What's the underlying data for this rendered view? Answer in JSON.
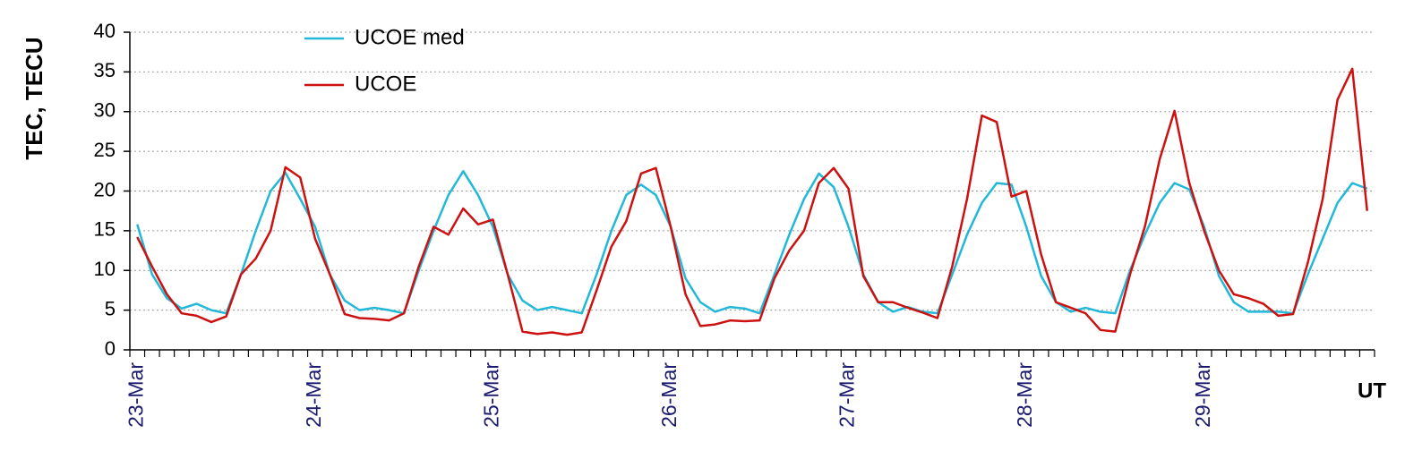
{
  "chart_data": {
    "type": "line",
    "ylabel": "TEC, TECU",
    "xlabel": "UT",
    "categories": [
      "23-Mar",
      null,
      null,
      null,
      null,
      null,
      null,
      null,
      null,
      null,
      null,
      null,
      "24-Mar",
      null,
      null,
      null,
      null,
      null,
      null,
      null,
      null,
      null,
      null,
      null,
      "25-Mar",
      null,
      null,
      null,
      null,
      null,
      null,
      null,
      null,
      null,
      null,
      null,
      "26-Mar",
      null,
      null,
      null,
      null,
      null,
      null,
      null,
      null,
      null,
      null,
      null,
      "27-Mar",
      null,
      null,
      null,
      null,
      null,
      null,
      null,
      null,
      null,
      null,
      null,
      "28-Mar",
      null,
      null,
      null,
      null,
      null,
      null,
      null,
      null,
      null,
      null,
      null,
      "29-Mar",
      null,
      null,
      null,
      null,
      null,
      null,
      null,
      null,
      null,
      null,
      null
    ],
    "series": [
      {
        "name": "UCOE med",
        "color": "#22b8d8",
        "values": [
          15.8,
          9.5,
          6.5,
          5.2,
          5.8,
          5.0,
          4.6,
          9.5,
          15,
          20,
          22.3,
          19,
          15.5,
          9.5,
          6.2,
          5.0,
          5.3,
          5.0,
          4.6,
          10,
          15,
          19.5,
          22.5,
          19.5,
          15.5,
          9.5,
          6.2,
          5.0,
          5.4,
          5.0,
          4.6,
          9.5,
          15,
          19.5,
          20.8,
          19.5,
          15.5,
          9,
          6,
          4.8,
          5.4,
          5.2,
          4.6,
          9.5,
          14.5,
          19,
          22.2,
          20.5,
          15.5,
          9.5,
          6,
          4.8,
          5.4,
          4.8,
          4.6,
          9.5,
          14.5,
          18.5,
          21,
          20.8,
          15.5,
          9.3,
          6,
          4.8,
          5.3,
          4.8,
          4.6,
          10,
          14.5,
          18.5,
          21,
          20.2,
          15.5,
          9.3,
          6,
          4.8,
          4.8,
          4.8,
          4.6,
          9.5,
          14,
          18.5,
          21,
          20.3
        ]
      },
      {
        "name": "UCOE",
        "color": "#cc1111",
        "values": [
          14.2,
          10.5,
          7,
          4.6,
          4.3,
          3.5,
          4.2,
          9.5,
          11.5,
          15,
          23,
          21.7,
          14,
          9.5,
          4.5,
          4.0,
          3.9,
          3.7,
          4.6,
          10.5,
          15.5,
          14.5,
          17.8,
          15.8,
          16.4,
          9.5,
          2.3,
          2.0,
          2.2,
          1.9,
          2.2,
          7.5,
          13,
          16.2,
          22.2,
          22.9,
          15.5,
          7,
          3,
          3.2,
          3.7,
          3.6,
          3.7,
          9,
          12.5,
          15,
          21,
          22.9,
          20.3,
          9.3,
          6.0,
          6.0,
          5.3,
          4.7,
          4.0,
          10.5,
          19,
          29.5,
          28.7,
          19.3,
          20,
          12,
          6,
          5.3,
          4.6,
          2.5,
          2.3,
          9.5,
          15.5,
          24,
          30.1,
          21,
          15,
          10,
          7,
          6.5,
          5.8,
          4.3,
          4.5,
          11,
          19,
          31.5,
          35.4,
          17.5
        ]
      }
    ],
    "ylim": [
      0,
      40
    ],
    "yticks": [
      0,
      5,
      10,
      15,
      20,
      25,
      30,
      35,
      40
    ],
    "grid": true,
    "legend": "top-left"
  }
}
